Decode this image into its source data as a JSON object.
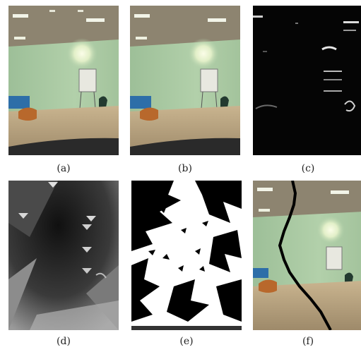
{
  "panels": [
    {
      "id": "a",
      "caption": "(a)",
      "content": "original-room-photo"
    },
    {
      "id": "b",
      "caption": "(b)",
      "content": "processed-room-photo"
    },
    {
      "id": "c",
      "caption": "(c)",
      "content": "edge-map"
    },
    {
      "id": "d",
      "caption": "(d)",
      "content": "grayscale-map"
    },
    {
      "id": "e",
      "caption": "(e)",
      "content": "binary-segmentation"
    },
    {
      "id": "f",
      "caption": "(f)",
      "content": "room-photo-with-boundary-line"
    }
  ],
  "colors": {
    "wall": "#a9c9a4",
    "ceiling": "#8f8672",
    "floor": "#bda886",
    "light": "#f4f8e0",
    "sofa": "#2d6ea8",
    "ottoman": "#b8682c",
    "line": "#000000"
  }
}
